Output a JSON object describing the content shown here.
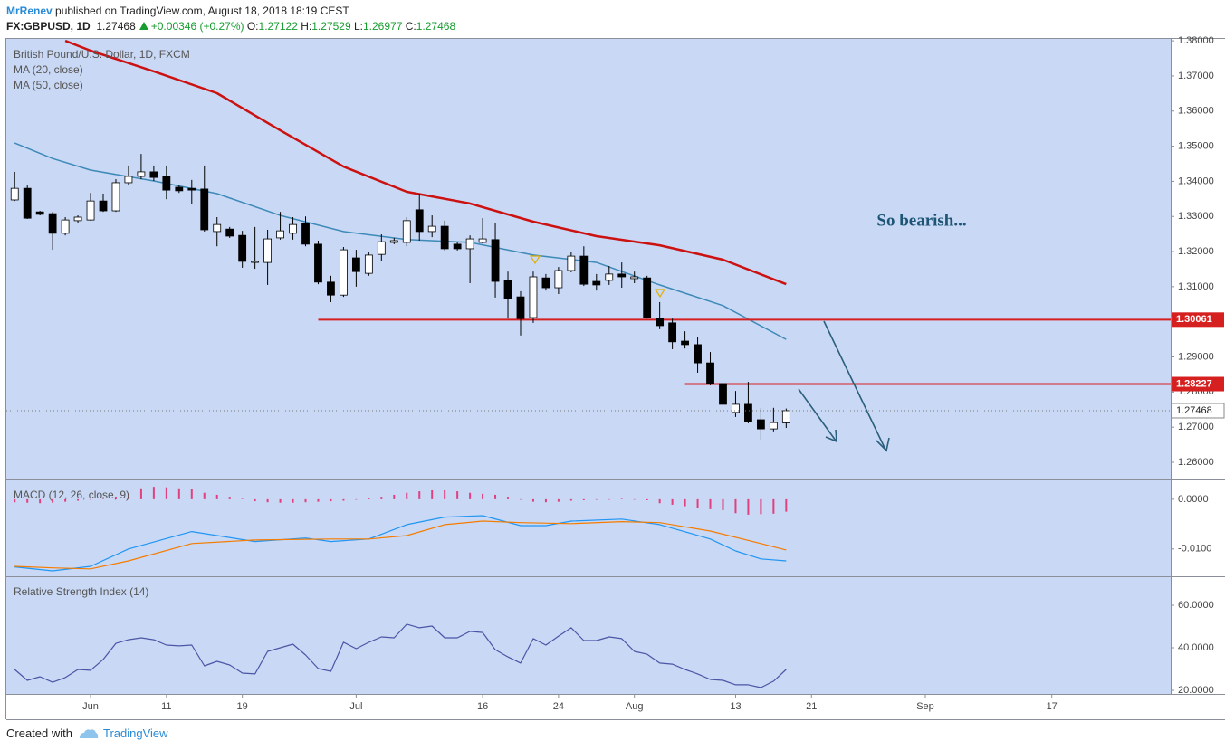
{
  "header": {
    "author": "MrRenev",
    "published": "published on TradingView.com, August 18, 2018 18:19 CEST",
    "symbol": "FX:GBPUSD, 1D",
    "last": "1.27468",
    "change": "+0.00346 (+0.27%)",
    "ohlc": [
      [
        "O:",
        "1.27122"
      ],
      [
        "H:",
        "1.27529"
      ],
      [
        "L:",
        "1.26977"
      ],
      [
        "C:",
        "1.27468"
      ]
    ]
  },
  "footer": {
    "created": "Created with",
    "brand": "TradingView"
  },
  "chart_data": [
    {
      "type": "candlestick",
      "title": "British Pound/U.S. Dollar, 1D, FXCM",
      "x": [
        -6,
        -5,
        -4,
        -3,
        -2,
        -1,
        0,
        1,
        2,
        3,
        4,
        5,
        6,
        7,
        8,
        9,
        10,
        11,
        12,
        13,
        14,
        15,
        16,
        17,
        18,
        19,
        20,
        21,
        22,
        23,
        24,
        25,
        26,
        27,
        28,
        29,
        30,
        31,
        32,
        33,
        34,
        35,
        36,
        37,
        38,
        39,
        40,
        41,
        42,
        43,
        44,
        45,
        46,
        47,
        48,
        49,
        50,
        51,
        52,
        53,
        54,
        55
      ],
      "open": [
        1.3347,
        1.338,
        1.3313,
        1.3308,
        1.3252,
        1.3288,
        1.329,
        1.3344,
        1.3316,
        1.3396,
        1.3414,
        1.3427,
        1.3414,
        1.3383,
        1.338,
        1.3378,
        1.3257,
        1.3264,
        1.3246,
        1.3169,
        1.3169,
        1.3239,
        1.3252,
        1.328,
        1.3221,
        1.3113,
        1.3076,
        1.3182,
        1.3138,
        1.3192,
        1.3226,
        1.3226,
        1.3319,
        1.3257,
        1.3272,
        1.3221,
        1.3208,
        1.3226,
        1.3234,
        1.3118,
        1.3071,
        1.3012,
        1.3125,
        1.3097,
        1.3146,
        1.3187,
        1.3115,
        1.3118,
        1.3136,
        1.3123,
        1.3125,
        1.3009,
        1.2997,
        1.2945,
        1.2935,
        1.2883,
        1.2824,
        1.2742,
        1.2765,
        1.2721,
        1.2695,
        1.27122
      ],
      "high": [
        1.3427,
        1.3388,
        1.3316,
        1.3313,
        1.3298,
        1.3303,
        1.3367,
        1.3365,
        1.3406,
        1.3445,
        1.3478,
        1.3445,
        1.3445,
        1.3388,
        1.3404,
        1.3445,
        1.3298,
        1.327,
        1.3259,
        1.327,
        1.3262,
        1.3313,
        1.3298,
        1.33,
        1.3231,
        1.3131,
        1.3213,
        1.3205,
        1.32,
        1.3249,
        1.3239,
        1.3298,
        1.3365,
        1.3303,
        1.3288,
        1.3228,
        1.3246,
        1.3295,
        1.328,
        1.3143,
        1.3087,
        1.3143,
        1.3136,
        1.3156,
        1.32,
        1.3215,
        1.3136,
        1.3159,
        1.3169,
        1.3143,
        1.3131,
        1.3056,
        1.3009,
        1.2973,
        1.2958,
        1.2914,
        1.2834,
        1.2803,
        1.2829,
        1.2755,
        1.2755,
        1.27529
      ],
      "low": [
        1.3344,
        1.3293,
        1.3303,
        1.3205,
        1.3246,
        1.328,
        1.3288,
        1.3313,
        1.3313,
        1.3388,
        1.3406,
        1.3401,
        1.3349,
        1.3367,
        1.3334,
        1.3257,
        1.3215,
        1.3239,
        1.3154,
        1.3151,
        1.3105,
        1.3234,
        1.3234,
        1.3215,
        1.3107,
        1.3056,
        1.3071,
        1.31,
        1.3131,
        1.3174,
        1.3221,
        1.3215,
        1.3231,
        1.3241,
        1.3203,
        1.3203,
        1.311,
        1.3223,
        1.3069,
        1.3009,
        1.2961,
        1.2997,
        1.3089,
        1.3079,
        1.3141,
        1.3102,
        1.3089,
        1.3105,
        1.3097,
        1.311,
        1.3009,
        1.2979,
        1.2922,
        1.2924,
        1.2855,
        1.2819,
        1.2726,
        1.2729,
        1.2711,
        1.2664,
        1.2688,
        1.26977
      ],
      "close": [
        1.338,
        1.3295,
        1.3306,
        1.3252,
        1.329,
        1.3298,
        1.3344,
        1.3316,
        1.3396,
        1.3414,
        1.3427,
        1.3411,
        1.3375,
        1.3373,
        1.3375,
        1.3262,
        1.3277,
        1.3244,
        1.3172,
        1.3172,
        1.3236,
        1.3259,
        1.3277,
        1.3221,
        1.3113,
        1.3076,
        1.3205,
        1.3143,
        1.319,
        1.3228,
        1.3231,
        1.3288,
        1.3257,
        1.3272,
        1.3208,
        1.3208,
        1.3236,
        1.3236,
        1.3115,
        1.3066,
        1.3009,
        1.3128,
        1.3097,
        1.3146,
        1.3187,
        1.3107,
        1.3105,
        1.3136,
        1.3128,
        1.3128,
        1.3012,
        1.2989,
        1.2943,
        1.2935,
        1.2883,
        1.2824,
        1.2765,
        1.2765,
        1.2716,
        1.2695,
        1.2713,
        1.27468
      ],
      "up_color": "#ffffff",
      "down_color": "#000000",
      "series": [
        {
          "name": "MA (20, close)",
          "color": "#3d8ab8",
          "x": [
            -6,
            -3,
            0,
            5,
            10,
            15,
            20,
            25,
            30,
            35,
            40,
            45,
            50,
            55
          ],
          "values": [
            1.3509,
            1.3465,
            1.3432,
            1.3401,
            1.3365,
            1.3303,
            1.3257,
            1.3234,
            1.3226,
            1.319,
            1.3169,
            1.3105,
            1.3046,
            1.295
          ]
        },
        {
          "name": "MA (50, close)",
          "color": "#cc1111",
          "x": [
            -2,
            0,
            5,
            10,
            15,
            20,
            25,
            30,
            35,
            40,
            45,
            50,
            55
          ],
          "values": [
            1.38,
            1.3772,
            1.3713,
            1.3651,
            1.3545,
            1.3442,
            1.337,
            1.3337,
            1.3285,
            1.3244,
            1.3218,
            1.3177,
            1.3107
          ]
        }
      ],
      "levels": [
        {
          "value": 1.30061,
          "x": 18,
          "color": "#d61f1f"
        },
        {
          "value": 1.28227,
          "x": 47,
          "color": "#d61f1f"
        }
      ],
      "annotation": "So bearish...",
      "xlim": [
        -6.66,
        85.4
      ],
      "ylim": [
        1.2551,
        1.3808
      ],
      "yticks": [
        {
          "value": 1.26,
          "label": "1.26000"
        },
        {
          "value": 1.27,
          "label": "1.27000"
        },
        {
          "value": 1.28,
          "label": "1.28000"
        },
        {
          "value": 1.29,
          "label": "1.29000"
        },
        {
          "value": 1.31,
          "label": "1.31000"
        },
        {
          "value": 1.32,
          "label": "1.32000"
        },
        {
          "value": 1.33,
          "label": "1.33000"
        },
        {
          "value": 1.34,
          "label": "1.34000"
        },
        {
          "value": 1.35,
          "label": "1.35000"
        },
        {
          "value": 1.36,
          "label": "1.36000"
        },
        {
          "value": 1.37,
          "label": "1.37000"
        },
        {
          "value": 1.38,
          "label": "1.38000"
        }
      ],
      "xticks": [
        {
          "value": 0,
          "label": "Jun"
        },
        {
          "value": 6,
          "label": "11"
        },
        {
          "value": 12,
          "label": "19"
        },
        {
          "value": 21,
          "label": "Jul"
        },
        {
          "value": 31,
          "label": "16"
        },
        {
          "value": 37,
          "label": "24"
        },
        {
          "value": 43,
          "label": "Aug"
        },
        {
          "value": 51,
          "label": "13"
        },
        {
          "value": 57,
          "label": "21"
        },
        {
          "value": 66,
          "label": "Sep"
        },
        {
          "value": 76,
          "label": "17"
        }
      ],
      "grid": false
    },
    {
      "type": "macd",
      "title": "MACD (12, 26, close, 9)",
      "histogram": {
        "color": "#e0407e",
        "values": [
          -0.0006,
          -0.0007,
          -0.0008,
          -0.0007,
          -0.0005,
          -0.0003,
          -0.0001,
          0.0001,
          0.0005,
          0.0012,
          0.0022,
          0.0025,
          0.0024,
          0.0022,
          0.002,
          0.0013,
          0.0009,
          0.0005,
          0.0001,
          -0.0004,
          -0.0006,
          -0.0007,
          -0.0007,
          -0.0006,
          -0.0005,
          -0.0004,
          -0.0003,
          -0.0001,
          0.0002,
          0.0005,
          0.0009,
          0.0013,
          0.0016,
          0.0018,
          0.0018,
          0.0016,
          0.0013,
          0.0011,
          0.0009,
          0.0005,
          0.0,
          -0.0005,
          -0.0006,
          -0.0005,
          -0.0003,
          -0.0002,
          -0.0001,
          0.0,
          0.0001,
          0.0,
          -0.0002,
          -0.0008,
          -0.0011,
          -0.0014,
          -0.0018,
          -0.002,
          -0.0022,
          -0.0028,
          -0.0031,
          -0.003,
          -0.0029,
          -0.0025
        ]
      },
      "series": [
        {
          "color": "#2196f3",
          "x": [
            -6,
            -3,
            0,
            3,
            8,
            13,
            17,
            19,
            22,
            25,
            28,
            31,
            34,
            36,
            38,
            42,
            45,
            49,
            51,
            53,
            55
          ],
          "values": [
            -0.0136,
            -0.0144,
            -0.0135,
            -0.01,
            -0.0065,
            -0.0085,
            -0.0078,
            -0.0085,
            -0.008,
            -0.0051,
            -0.0036,
            -0.0033,
            -0.0053,
            -0.0053,
            -0.0044,
            -0.004,
            -0.0051,
            -0.008,
            -0.0104,
            -0.012,
            -0.0124
          ]
        },
        {
          "color": "#f57c00",
          "x": [
            -6,
            -3,
            0,
            3,
            8,
            13,
            19,
            22,
            25,
            28,
            31,
            34,
            38,
            42,
            45,
            49,
            53,
            55
          ],
          "values": [
            -0.0135,
            -0.0138,
            -0.014,
            -0.0124,
            -0.0089,
            -0.0082,
            -0.008,
            -0.008,
            -0.0073,
            -0.0051,
            -0.0044,
            -0.0047,
            -0.0049,
            -0.0045,
            -0.0047,
            -0.0064,
            -0.0089,
            -0.0102
          ]
        }
      ],
      "ylim": [
        -0.0155,
        0.0038
      ],
      "yticks": [
        {
          "value": 0,
          "label": "0.0000"
        },
        {
          "value": -0.01,
          "label": "-0.0100"
        }
      ]
    },
    {
      "type": "line",
      "title": "Relative Strength Index (14)",
      "series": [
        {
          "color": "#4a56a6",
          "values": [
            29.8,
            24.7,
            26.4,
            23.8,
            26.0,
            29.8,
            29.4,
            34.5,
            42.1,
            43.8,
            44.7,
            43.8,
            41.3,
            40.9,
            41.3,
            31.5,
            33.6,
            31.9,
            28.1,
            27.7,
            38.3,
            40.0,
            41.7,
            36.6,
            30.2,
            28.9,
            42.6,
            39.6,
            42.6,
            45.1,
            44.7,
            51.1,
            49.4,
            50.2,
            44.7,
            44.7,
            47.7,
            47.2,
            39.1,
            35.7,
            32.8,
            44.3,
            41.3,
            45.5,
            49.4,
            43.4,
            43.4,
            45.1,
            44.3,
            38.3,
            37.0,
            32.8,
            32.3,
            29.8,
            27.7,
            25.1,
            24.7,
            22.6,
            22.6,
            21.3,
            24.3,
            29.8
          ]
        }
      ],
      "bands": [
        {
          "value": 70,
          "color": "#e53935"
        },
        {
          "value": 30,
          "color": "#2e9e4f"
        }
      ],
      "ylim": [
        18.3,
        73.2
      ],
      "yticks": [
        {
          "value": 20,
          "label": "20.0000"
        },
        {
          "value": 40,
          "label": "40.0000"
        },
        {
          "value": 60,
          "label": "60.0000"
        }
      ]
    }
  ]
}
